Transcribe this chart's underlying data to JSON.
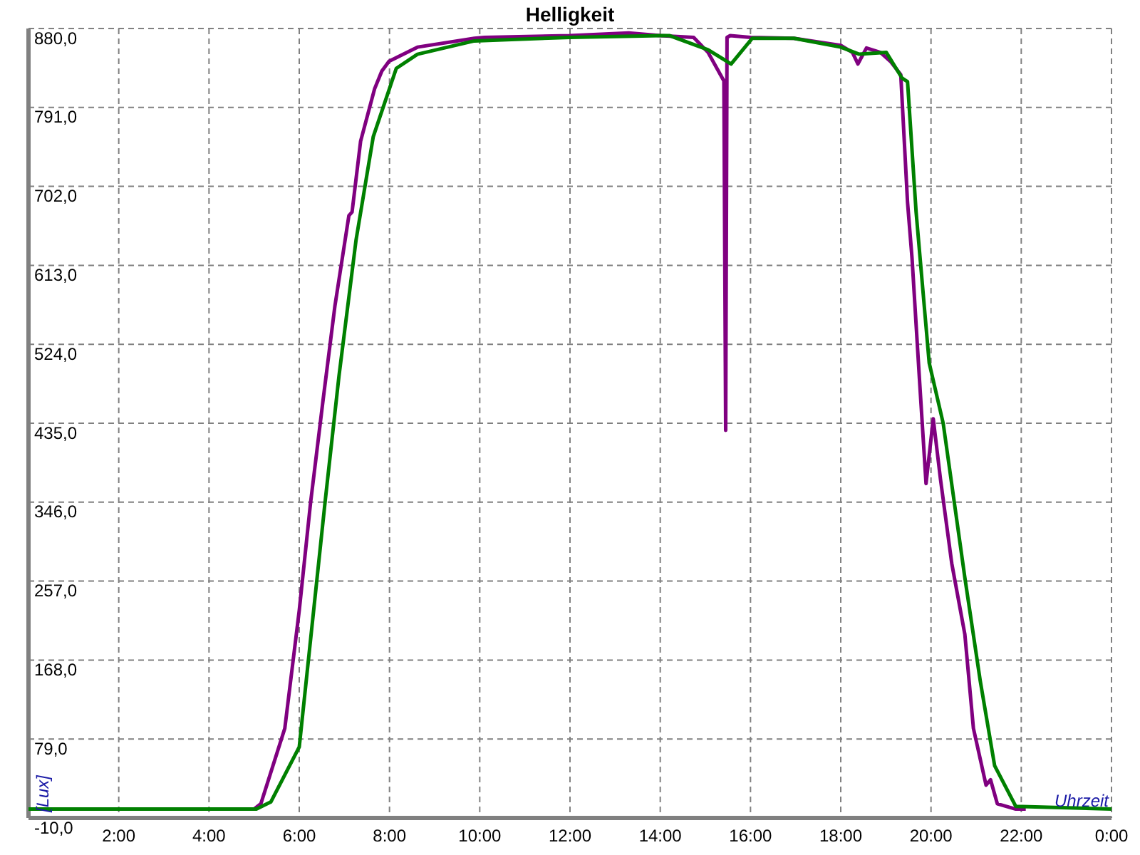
{
  "chart_data": {
    "type": "line",
    "title": "Helligkeit",
    "xlabel": "Uhrzeit",
    "ylabel": "[Lux]",
    "xlim": [
      0,
      24
    ],
    "xticks": [
      {
        "value": 0,
        "label": null
      },
      {
        "value": 2,
        "label": "2:00"
      },
      {
        "value": 4,
        "label": "4:00"
      },
      {
        "value": 6,
        "label": "6:00"
      },
      {
        "value": 8,
        "label": "8:00"
      },
      {
        "value": 10,
        "label": "10:00"
      },
      {
        "value": 12,
        "label": "12:00"
      },
      {
        "value": 14,
        "label": "14:00"
      },
      {
        "value": 16,
        "label": "16:00"
      },
      {
        "value": 18,
        "label": "18:00"
      },
      {
        "value": 20,
        "label": "20:00"
      },
      {
        "value": 22,
        "label": "22:00"
      },
      {
        "value": 24,
        "label": "0:00"
      }
    ],
    "ylim": [
      -10,
      880
    ],
    "yticks": [
      {
        "value": -10,
        "label": "-10,0"
      },
      {
        "value": 79,
        "label": "79,0"
      },
      {
        "value": 168,
        "label": "168,0"
      },
      {
        "value": 257,
        "label": "257,0"
      },
      {
        "value": 346,
        "label": "346,0"
      },
      {
        "value": 435,
        "label": "435,0"
      },
      {
        "value": 524,
        "label": "524,0"
      },
      {
        "value": 613,
        "label": "613,0"
      },
      {
        "value": 702,
        "label": "702,0"
      },
      {
        "value": 791,
        "label": "791,0"
      },
      {
        "value": 880,
        "label": "880,0"
      }
    ],
    "grid": true,
    "marker": "none",
    "line_style": "solid",
    "series": [
      {
        "color": "#800080",
        "x": [
          0,
          5.0,
          5.15,
          5.68,
          6.0,
          6.25,
          6.53,
          6.79,
          7.1,
          7.17,
          7.36,
          7.67,
          7.83,
          7.99,
          8.62,
          9.88,
          10.1,
          12,
          13.3,
          14.0,
          14.74,
          15.06,
          15.41,
          15.45,
          15.48,
          15.55,
          16.0,
          16.96,
          18.0,
          18.26,
          18.38,
          18.57,
          18.88,
          19.1,
          19.33,
          19.48,
          19.58,
          19.74,
          19.89,
          20.05,
          20.21,
          20.46,
          20.75,
          20.94,
          21.22,
          21.32,
          21.47,
          21.88,
          22.1
        ],
        "values": [
          0,
          0,
          6,
          91,
          224,
          345,
          462,
          567,
          669,
          673,
          753,
          812,
          832,
          843,
          859,
          869,
          870,
          872,
          875,
          872,
          870,
          853,
          821,
          427,
          870,
          872,
          870,
          869,
          861,
          853,
          840,
          858,
          853,
          843,
          828,
          684,
          621,
          488,
          367,
          440,
          372,
          277,
          197,
          91,
          27,
          33,
          6,
          0,
          0
        ]
      },
      {
        "color": "#008000",
        "x": [
          0,
          5.05,
          5.37,
          6.0,
          6.57,
          6.88,
          7.26,
          7.64,
          8.15,
          8.62,
          9.88,
          12,
          14.0,
          14.2,
          15.06,
          15.57,
          16.04,
          16.96,
          18.0,
          18.41,
          19.01,
          19.36,
          19.48,
          19.67,
          19.96,
          20.27,
          20.75,
          21.09,
          21.41,
          21.88,
          24
        ],
        "values": [
          0,
          0,
          8,
          70,
          345,
          488,
          642,
          758,
          835,
          851,
          866,
          870,
          872,
          872,
          856,
          840,
          869,
          869,
          859,
          851,
          853,
          824,
          820,
          673,
          503,
          435,
          261,
          145,
          49,
          3,
          0
        ]
      }
    ]
  }
}
